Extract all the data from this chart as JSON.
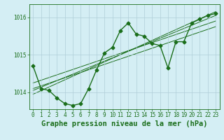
{
  "title": "Graphe pression niveau de la mer (hPa)",
  "xlabel_hours": [
    0,
    1,
    2,
    3,
    4,
    5,
    6,
    7,
    8,
    9,
    10,
    11,
    12,
    13,
    14,
    15,
    16,
    17,
    18,
    19,
    20,
    21,
    22,
    23
  ],
  "pressure_main": [
    1014.7,
    1014.1,
    1014.05,
    1013.85,
    1013.7,
    1013.65,
    1013.7,
    1014.1,
    1014.6,
    1015.05,
    1015.2,
    1015.65,
    1015.85,
    1015.55,
    1015.5,
    1015.3,
    1015.25,
    1014.65,
    1015.35,
    1015.35,
    1015.85,
    1015.95,
    1016.05,
    1016.1
  ],
  "trend_lines": [
    [
      [
        0,
        23
      ],
      [
        1014.25,
        1015.9
      ]
    ],
    [
      [
        0,
        23
      ],
      [
        1014.1,
        1015.75
      ]
    ],
    [
      [
        0,
        23
      ],
      [
        1014.05,
        1016.05
      ]
    ],
    [
      [
        0,
        23
      ],
      [
        1013.95,
        1016.15
      ]
    ]
  ],
  "ylim": [
    1013.55,
    1016.35
  ],
  "yticks": [
    1014,
    1015,
    1016
  ],
  "line_color": "#1a6e1a",
  "bg_color": "#d4eef4",
  "grid_color": "#b0cdd8",
  "label_color": "#1a6e1a",
  "marker_size": 2.5,
  "line_width": 1.0,
  "title_fontsize": 7.5,
  "tick_fontsize": 5.5
}
